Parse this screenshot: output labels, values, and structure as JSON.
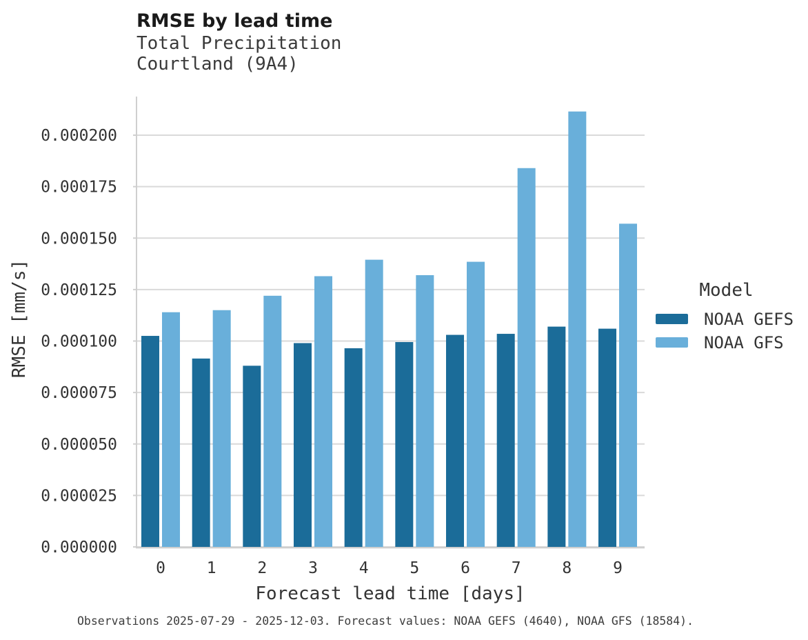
{
  "header": {
    "title": "RMSE by lead time",
    "subtitle_line1": "Total Precipitation",
    "subtitle_line2": "Courtland (9A4)"
  },
  "legend": {
    "title": "Model",
    "items": [
      {
        "label": "NOAA GEFS",
        "color": "#1b6c99"
      },
      {
        "label": "NOAA GFS",
        "color": "#69afda"
      }
    ]
  },
  "caption": "Observations 2025-07-29 - 2025-12-03. Forecast values: NOAA GEFS (4640), NOAA GFS (18584).",
  "colors": {
    "grid": "#d9d9d9",
    "axis": "#cfcfcf",
    "tick_text": "#333333",
    "title_text": "#1a1a1a",
    "subtitle_text": "#3a3a3a",
    "caption_text": "#3d3d3d"
  },
  "chart_data": {
    "type": "bar",
    "title": "RMSE by lead time",
    "subtitle": [
      "Total Precipitation",
      "Courtland (9A4)"
    ],
    "xlabel": "Forecast lead time [days]",
    "ylabel": "RMSE [mm/s]",
    "categories": [
      0,
      1,
      2,
      3,
      4,
      5,
      6,
      7,
      8,
      9
    ],
    "series": [
      {
        "name": "NOAA GEFS",
        "color": "#1b6c99",
        "values": [
          0.0001025,
          9.15e-05,
          8.8e-05,
          9.9e-05,
          9.65e-05,
          9.95e-05,
          0.000103,
          0.0001035,
          0.000107,
          0.000106
        ]
      },
      {
        "name": "NOAA GFS",
        "color": "#69afda",
        "values": [
          0.000114,
          0.000115,
          0.000122,
          0.0001315,
          0.0001395,
          0.000132,
          0.0001385,
          0.000184,
          0.0002115,
          0.000157
        ]
      }
    ],
    "ylim": [
      0,
      0.00021875
    ],
    "yticks": [
      0.0,
      2.5e-05,
      5e-05,
      7.5e-05,
      0.0001,
      0.000125,
      0.00015,
      0.000175,
      0.0002
    ],
    "ytick_labels": [
      "0.000000",
      "0.000025",
      "0.000050",
      "0.000075",
      "0.000100",
      "0.000125",
      "0.000150",
      "0.000175",
      "0.000200"
    ],
    "grid": true,
    "legend_position": "right",
    "legend_title": "Model"
  }
}
